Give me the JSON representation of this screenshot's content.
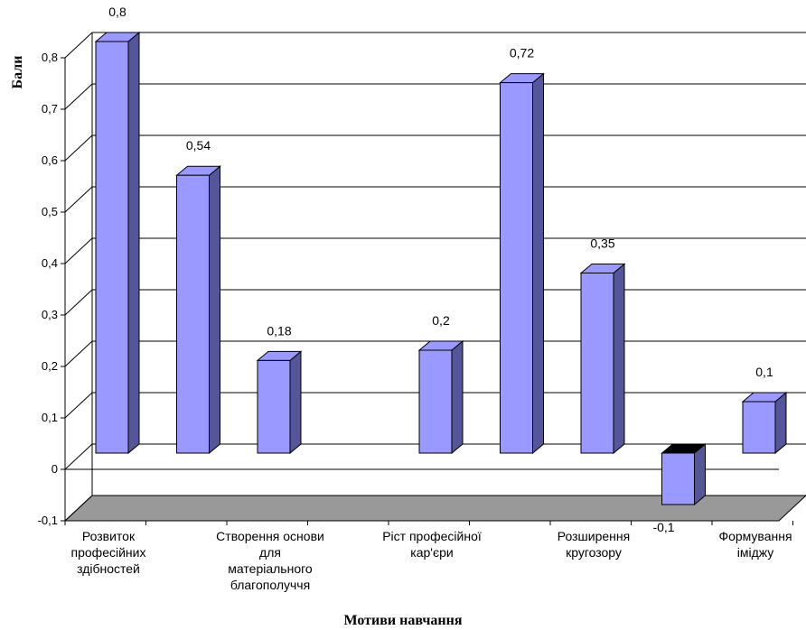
{
  "chart_data": {
    "type": "bar",
    "title": "",
    "xlabel": "Мотиви навчання",
    "ylabel": "Бали",
    "ylim": [
      -0.1,
      0.8
    ],
    "yticks": [
      "-0,1",
      "0",
      "0,1",
      "0,2",
      "0,3",
      "0,4",
      "0,5",
      "0,6",
      "0,7",
      "0,8"
    ],
    "grid": true,
    "legend": "none",
    "bar_colors": {
      "positive": "#9999ff",
      "positive_side": "#55559a",
      "negative_front": "#9999ff",
      "negative_top": "#000000",
      "floor": "#999999"
    },
    "categories": [
      "Розвиток професійних здібностей",
      "",
      "Створення основи для матеріального благополуччя",
      "",
      "Ріст професійної кар'єри",
      "",
      "Розширення кругозору",
      "",
      "Формування іміджу"
    ],
    "category_lines": [
      [
        "Розвиток",
        "професійних",
        "здібностей"
      ],
      [],
      [
        "Створення основи",
        "для",
        "матеріального",
        "благополуччя"
      ],
      [],
      [
        "Ріст професійної",
        "кар'єри"
      ],
      [],
      [
        "Розширення",
        "кругозору"
      ],
      [],
      [
        "Формування",
        "іміджу"
      ]
    ],
    "values": [
      0.8,
      0.54,
      0.18,
      null,
      0.2,
      0.72,
      0.35,
      -0.1,
      0.1
    ],
    "value_labels": [
      "0,8",
      "0,54",
      "0,18",
      "",
      "0,2",
      "0,72",
      "0,35",
      "-0,1",
      "0,1"
    ]
  }
}
